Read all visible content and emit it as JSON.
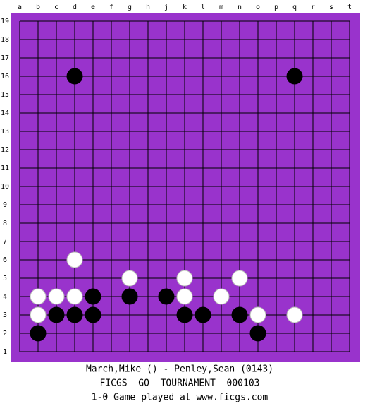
{
  "board": {
    "columns": [
      "a",
      "b",
      "c",
      "d",
      "e",
      "f",
      "g",
      "h",
      "j",
      "k",
      "l",
      "m",
      "n",
      "o",
      "p",
      "q",
      "r",
      "s",
      "t"
    ],
    "rows": [
      19,
      18,
      17,
      16,
      15,
      14,
      13,
      12,
      11,
      10,
      9,
      8,
      7,
      6,
      5,
      4,
      3,
      2,
      1
    ],
    "black": [
      "d16",
      "q16",
      "e4",
      "g4",
      "j4",
      "c3",
      "d3",
      "e3",
      "k3",
      "l3",
      "n3",
      "b2",
      "o2"
    ],
    "white": [
      "d6",
      "g5",
      "k5",
      "n5",
      "b4",
      "c4",
      "d4",
      "k4",
      "m4",
      "b3",
      "o3",
      "q3"
    ]
  },
  "footer": [
    "March,Mike () - Penley,Sean (0143)",
    "FICGS__GO__TOURNAMENT__000103",
    "1-0   Game played at www.ficgs.com"
  ]
}
